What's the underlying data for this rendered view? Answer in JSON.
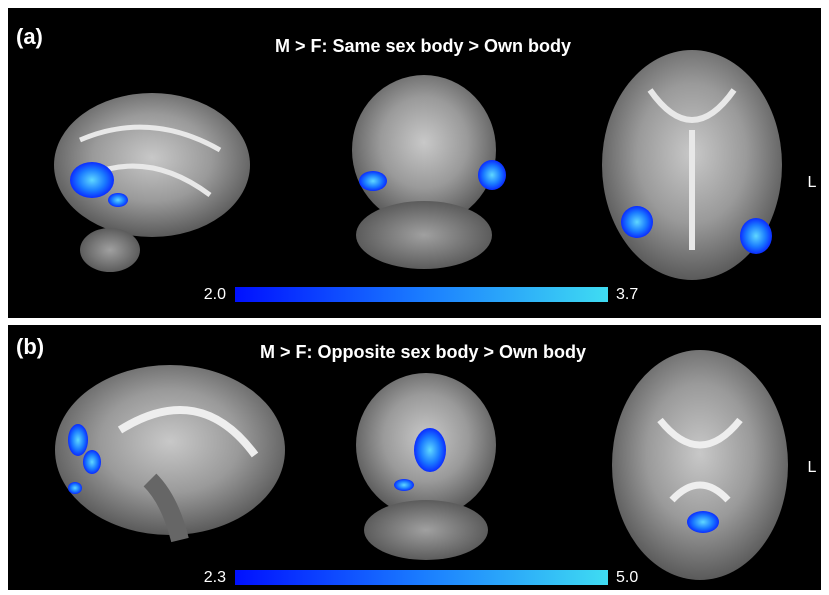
{
  "panels": [
    {
      "label": "(a)",
      "title": "M > F: Same sex body > Own body",
      "orientation": "L",
      "colorbar": {
        "min": "2.0",
        "max": "3.7"
      }
    },
    {
      "label": "(b)",
      "title": "M > F: Opposite sex body > Own body",
      "orientation": "L",
      "colorbar": {
        "min": "2.3",
        "max": "5.0"
      }
    }
  ]
}
